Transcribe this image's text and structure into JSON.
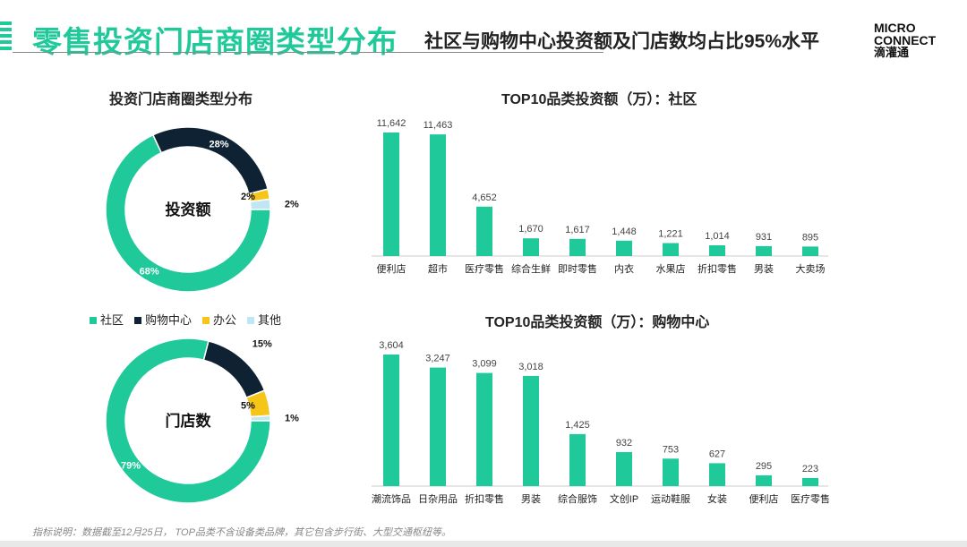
{
  "header": {
    "title": "零售投资门店商圈类型分布",
    "subtitle": "社区与购物中心投资额及门店数均占比95%水平",
    "logo_line1": "MICRO",
    "logo_line2": "CONNECT",
    "logo_line3": "滴灌通"
  },
  "footer": "指标说明：数据截至12月25日， TOP品类不含设备类品牌，其它包含步行街、大型交通枢纽等。",
  "colors": {
    "社区": "#1fc99a",
    "购物中心": "#0e2233",
    "办公": "#f5c518",
    "其他": "#bfe6f2"
  },
  "chart_data": [
    {
      "type": "pie",
      "title": "投资门店商圈类型分布",
      "center_label": "投资额",
      "categories": [
        "购物中心",
        "办公",
        "其他",
        "社区"
      ],
      "values": [
        28,
        2,
        2,
        68
      ],
      "labels": [
        "28%",
        "2%",
        "2%",
        "68%"
      ]
    },
    {
      "type": "pie",
      "title": "",
      "center_label": "门店数",
      "categories": [
        "购物中心",
        "办公",
        "其他",
        "社区"
      ],
      "values": [
        15,
        5,
        1,
        79
      ],
      "labels": [
        "15%",
        "5%",
        "1%",
        "79%"
      ]
    },
    {
      "type": "bar",
      "title": "TOP10品类投资额（万）：社区",
      "categories": [
        "便利店",
        "超市",
        "医疗零售",
        "综合生鲜",
        "即时零售",
        "内衣",
        "水果店",
        "折扣零售",
        "男装",
        "大卖场"
      ],
      "values": [
        11642,
        11463,
        4652,
        1670,
        1617,
        1448,
        1221,
        1014,
        931,
        895
      ],
      "value_labels": [
        "11,642",
        "11,463",
        "4,652",
        "1,670",
        "1,617",
        "1,448",
        "1,221",
        "1,014",
        "931",
        "895"
      ]
    },
    {
      "type": "bar",
      "title": "TOP10品类投资额（万）：购物中心",
      "categories": [
        "潮流饰品",
        "日杂用品",
        "折扣零售",
        "男装",
        "综合服饰",
        "文创IP",
        "运动鞋服",
        "女装",
        "便利店",
        "医疗零售"
      ],
      "values": [
        3604,
        3247,
        3099,
        3018,
        1425,
        932,
        753,
        627,
        295,
        223
      ],
      "value_labels": [
        "3,604",
        "3,247",
        "3,099",
        "3,018",
        "1,425",
        "932",
        "753",
        "627",
        "295",
        "223"
      ]
    }
  ],
  "legend": [
    "社区",
    "购物中心",
    "办公",
    "其他"
  ]
}
